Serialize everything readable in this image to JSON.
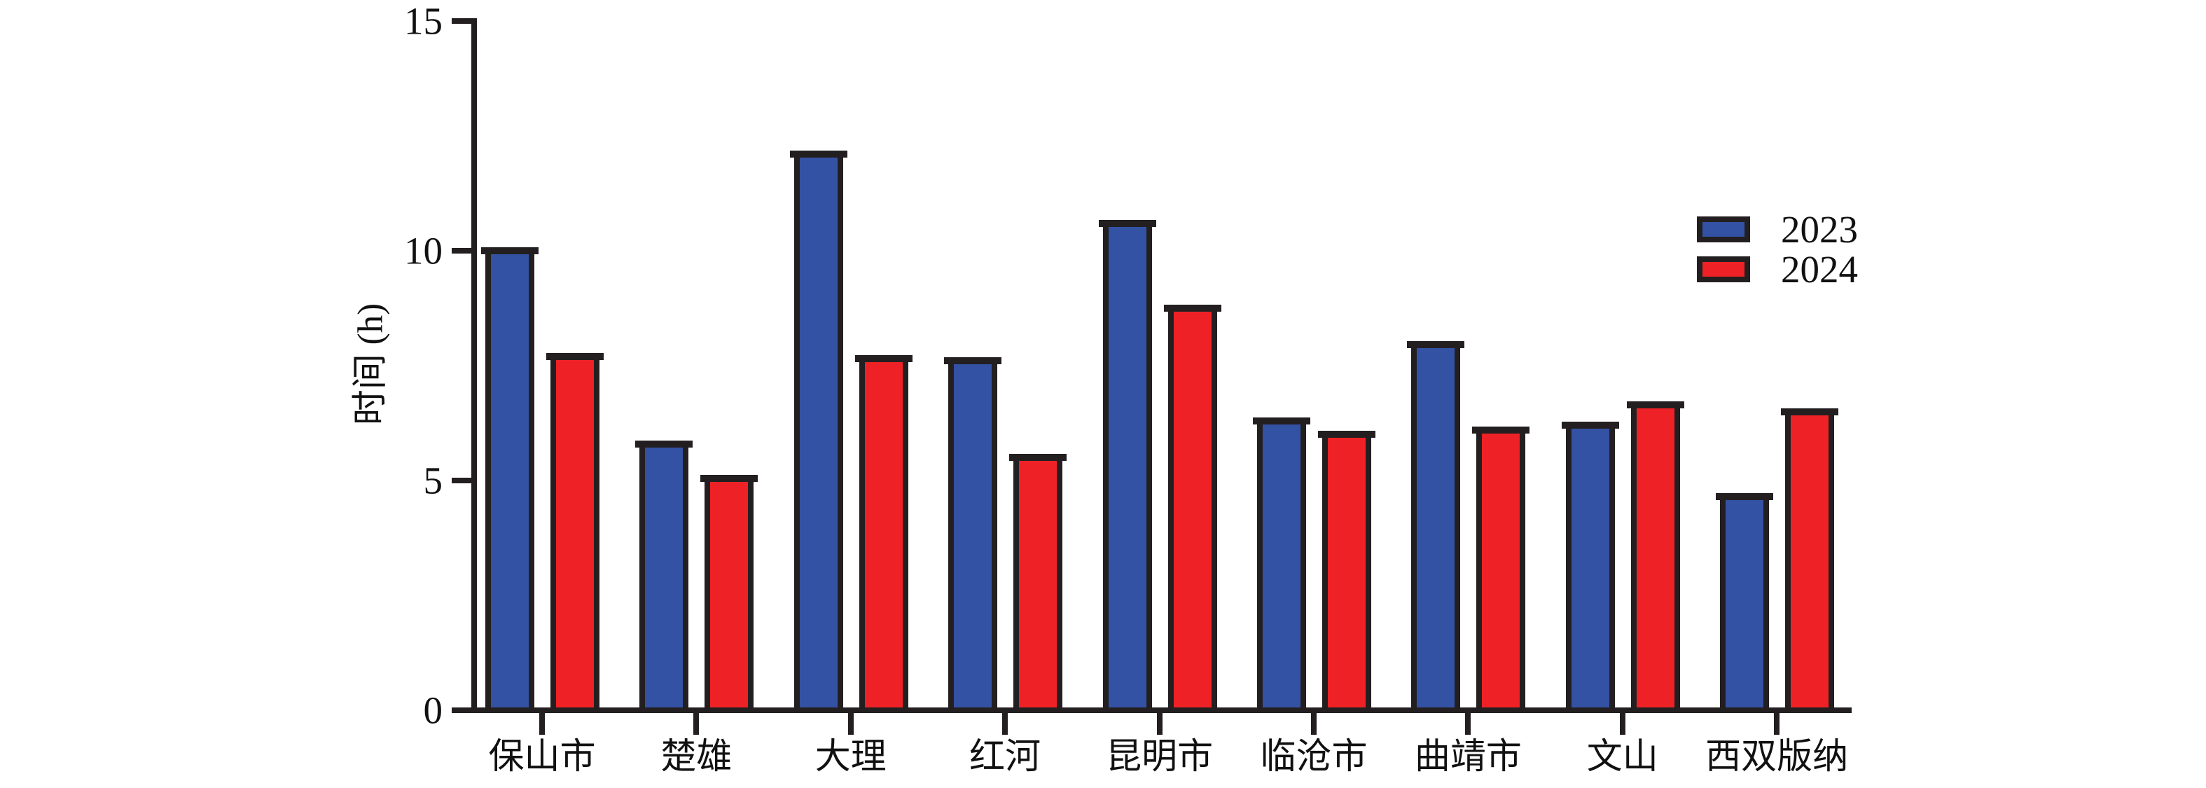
{
  "chart_data": {
    "type": "bar",
    "title": "",
    "categories": [
      "保山市",
      "楚雄",
      "大理",
      "红河",
      "昆明市",
      "临沧市",
      "曲靖市",
      "文山",
      "西双版纳"
    ],
    "series": [
      {
        "name": "2023",
        "color": "#3452A4",
        "values": [
          10.0,
          5.8,
          12.1,
          7.6,
          10.6,
          6.3,
          7.95,
          6.2,
          4.65
        ]
      },
      {
        "name": "2024",
        "color": "#EE2226",
        "values": [
          7.7,
          5.05,
          7.65,
          5.5,
          8.75,
          6.0,
          6.1,
          6.65,
          6.5
        ]
      }
    ],
    "ylabel": "时间 (h)",
    "xlabel": "",
    "ylim": [
      0,
      15
    ],
    "yticks": [
      0,
      5,
      10,
      15
    ],
    "grid": false,
    "legend_position": "upper right",
    "bar_outline_color": "#231F20",
    "background_color": "#FFFFFF"
  }
}
